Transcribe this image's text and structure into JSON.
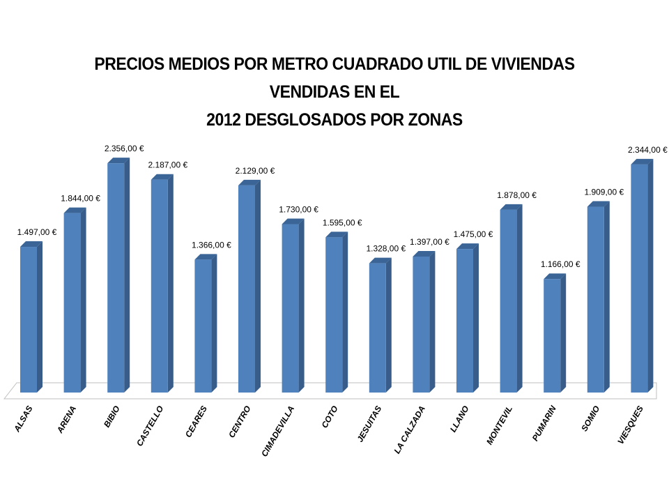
{
  "chart_data": {
    "type": "bar",
    "title_lines": [
      "PRECIOS MEDIOS POR METRO CUADRADO UTIL DE VIVIENDAS VENDIDAS EN EL",
      "2012 DESGLOSADOS POR ZONAS"
    ],
    "categories": [
      "ALSAS",
      "ARENA",
      "BIBIO",
      "CASTELLO",
      "CEARES",
      "CENTRO",
      "CIMADEVILLA",
      "COTO",
      "JESUITAS",
      "LA CALZADA",
      "LLANO",
      "MONTEVIL",
      "PUMARIN",
      "SOMIO",
      "VIESQUES"
    ],
    "values": [
      1497,
      1844,
      2356,
      2187,
      1366,
      2129,
      1730,
      1595,
      1328,
      1397,
      1475,
      1878,
      1166,
      1909,
      2344
    ],
    "value_labels": [
      "1.497,00 €",
      "1.844,00 €",
      "2.356,00 €",
      "2.187,00 €",
      "1.366,00 €",
      "2.129,00 €",
      "1.730,00 €",
      "1.595,00 €",
      "1.328,00 €",
      "1.397,00 €",
      "1.475,00 €",
      "1.878,00 €",
      "1.166,00 €",
      "1.909,00 €",
      "2.344,00 €"
    ],
    "ylim": [
      0,
      2400
    ],
    "grid": false,
    "legend": "none",
    "style": "3d-column"
  },
  "colors": {
    "bar_front": "#4f81bd",
    "bar_side": "#385d8a",
    "bar_top": "#3a6596",
    "floor": "#ffffff",
    "floor_edge": "#bfbfbf"
  }
}
